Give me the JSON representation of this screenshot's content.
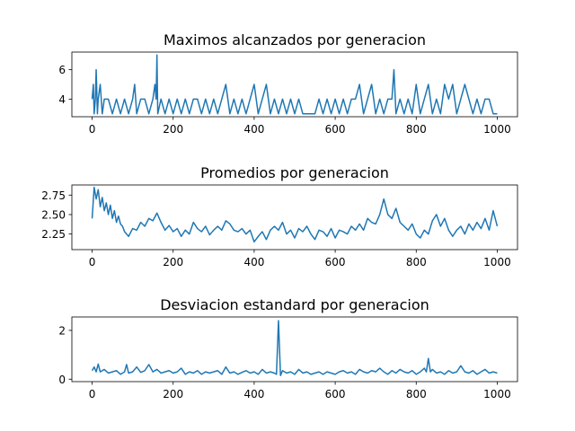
{
  "figure": {
    "background": "#ffffff",
    "line_color": "#1f77b4"
  },
  "chart_data": [
    {
      "type": "line",
      "title": "Maximos alcanzados por generacion",
      "xlabel": "",
      "ylabel": "",
      "xlim": [
        -50,
        1050
      ],
      "ylim": [
        2.8,
        7.2
      ],
      "xticks": [
        0,
        200,
        400,
        600,
        800,
        1000
      ],
      "yticks": [
        4,
        6
      ],
      "grid": false,
      "series": [
        {
          "x": [
            0,
            3,
            5,
            8,
            10,
            13,
            15,
            20,
            25,
            30,
            40,
            50,
            60,
            70,
            80,
            90,
            100,
            105,
            110,
            120,
            130,
            140,
            150,
            155,
            158,
            160,
            162,
            170,
            180,
            190,
            200,
            210,
            220,
            230,
            240,
            250,
            260,
            270,
            280,
            290,
            300,
            310,
            320,
            330,
            335,
            340,
            350,
            360,
            370,
            380,
            390,
            400,
            410,
            420,
            430,
            440,
            450,
            460,
            470,
            480,
            490,
            500,
            510,
            520,
            530,
            540,
            550,
            560,
            570,
            580,
            590,
            600,
            610,
            620,
            630,
            640,
            650,
            660,
            670,
            680,
            690,
            700,
            710,
            720,
            730,
            740,
            745,
            750,
            760,
            770,
            780,
            790,
            800,
            810,
            820,
            830,
            840,
            850,
            860,
            870,
            880,
            890,
            900,
            910,
            920,
            930,
            940,
            950,
            960,
            970,
            980,
            990,
            1000
          ],
          "values": [
            4,
            5,
            3,
            4,
            6,
            3,
            4,
            5,
            3,
            4,
            4,
            3,
            4,
            3,
            4,
            3,
            4,
            5,
            3,
            4,
            4,
            3,
            4,
            5,
            4,
            7,
            3,
            4,
            3,
            4,
            3,
            4,
            3,
            4,
            3,
            4,
            4,
            3,
            4,
            3,
            4,
            3,
            4,
            5,
            4,
            3,
            4,
            3,
            4,
            3,
            4,
            5,
            3,
            4,
            5,
            3,
            4,
            3,
            4,
            3,
            4,
            3,
            4,
            3,
            3,
            3,
            3,
            4,
            3,
            4,
            3,
            4,
            3,
            4,
            3,
            4,
            4,
            5,
            3,
            4,
            5,
            3,
            4,
            3,
            4,
            4,
            6,
            3,
            4,
            3,
            4,
            3,
            5,
            3,
            4,
            5,
            3,
            4,
            3,
            5,
            4,
            5,
            3,
            4,
            5,
            4,
            3,
            4,
            3,
            4,
            4,
            3,
            3
          ]
        }
      ]
    },
    {
      "type": "line",
      "title": "Promedios por generacion",
      "xlabel": "",
      "ylabel": "",
      "xlim": [
        -50,
        1050
      ],
      "ylim": [
        2.05,
        2.88
      ],
      "xticks": [
        0,
        200,
        400,
        600,
        800,
        1000
      ],
      "yticks": [
        2.25,
        2.5,
        2.75
      ],
      "yticklabels": [
        "2.25",
        "2.50",
        "2.75"
      ],
      "grid": false,
      "series": [
        {
          "x": [
            0,
            5,
            10,
            15,
            20,
            25,
            30,
            35,
            40,
            45,
            50,
            55,
            60,
            65,
            70,
            75,
            80,
            90,
            100,
            110,
            120,
            130,
            140,
            150,
            160,
            170,
            180,
            190,
            200,
            210,
            220,
            230,
            240,
            250,
            260,
            270,
            280,
            290,
            300,
            310,
            320,
            330,
            340,
            350,
            360,
            370,
            380,
            390,
            400,
            410,
            420,
            430,
            440,
            450,
            460,
            470,
            480,
            490,
            500,
            510,
            520,
            530,
            540,
            550,
            560,
            570,
            580,
            590,
            600,
            610,
            620,
            630,
            640,
            650,
            660,
            670,
            680,
            690,
            700,
            710,
            720,
            730,
            740,
            750,
            760,
            770,
            780,
            790,
            800,
            810,
            820,
            830,
            840,
            850,
            860,
            870,
            880,
            890,
            900,
            910,
            920,
            930,
            940,
            950,
            960,
            970,
            980,
            990,
            1000
          ],
          "values": [
            2.45,
            2.85,
            2.7,
            2.82,
            2.6,
            2.72,
            2.55,
            2.65,
            2.5,
            2.62,
            2.45,
            2.55,
            2.4,
            2.48,
            2.38,
            2.35,
            2.28,
            2.22,
            2.32,
            2.3,
            2.4,
            2.35,
            2.45,
            2.42,
            2.52,
            2.4,
            2.3,
            2.36,
            2.28,
            2.32,
            2.22,
            2.3,
            2.25,
            2.4,
            2.32,
            2.28,
            2.35,
            2.24,
            2.3,
            2.35,
            2.3,
            2.42,
            2.38,
            2.3,
            2.28,
            2.32,
            2.25,
            2.3,
            2.15,
            2.22,
            2.28,
            2.18,
            2.3,
            2.35,
            2.3,
            2.4,
            2.25,
            2.3,
            2.2,
            2.32,
            2.28,
            2.35,
            2.25,
            2.18,
            2.3,
            2.28,
            2.22,
            2.32,
            2.2,
            2.3,
            2.28,
            2.25,
            2.35,
            2.3,
            2.38,
            2.3,
            2.45,
            2.4,
            2.38,
            2.5,
            2.7,
            2.5,
            2.45,
            2.58,
            2.4,
            2.35,
            2.3,
            2.38,
            2.25,
            2.2,
            2.3,
            2.25,
            2.42,
            2.5,
            2.35,
            2.45,
            2.3,
            2.22,
            2.3,
            2.35,
            2.25,
            2.38,
            2.3,
            2.4,
            2.32,
            2.45,
            2.3,
            2.55,
            2.35
          ]
        }
      ]
    },
    {
      "type": "line",
      "title": "Desviacion estandard por generacion",
      "xlabel": "",
      "ylabel": "",
      "xlim": [
        -50,
        1050
      ],
      "ylim": [
        -0.1,
        2.55
      ],
      "xticks": [
        0,
        200,
        400,
        600,
        800,
        1000
      ],
      "yticks": [
        0,
        2
      ],
      "grid": false,
      "series": [
        {
          "x": [
            0,
            5,
            10,
            15,
            20,
            30,
            40,
            50,
            60,
            70,
            80,
            85,
            90,
            100,
            110,
            120,
            130,
            140,
            150,
            160,
            170,
            180,
            190,
            200,
            210,
            220,
            230,
            240,
            250,
            260,
            270,
            280,
            290,
            300,
            310,
            320,
            330,
            340,
            350,
            360,
            370,
            380,
            390,
            400,
            410,
            420,
            430,
            440,
            450,
            455,
            460,
            465,
            470,
            480,
            490,
            500,
            510,
            520,
            530,
            540,
            550,
            560,
            570,
            580,
            590,
            600,
            610,
            620,
            630,
            640,
            650,
            660,
            670,
            680,
            690,
            700,
            710,
            720,
            730,
            740,
            750,
            760,
            770,
            780,
            790,
            800,
            810,
            820,
            825,
            830,
            835,
            840,
            850,
            860,
            870,
            880,
            890,
            900,
            910,
            920,
            930,
            940,
            950,
            960,
            970,
            980,
            990,
            1000
          ],
          "values": [
            0.35,
            0.5,
            0.3,
            0.62,
            0.3,
            0.4,
            0.25,
            0.3,
            0.35,
            0.2,
            0.3,
            0.6,
            0.25,
            0.3,
            0.5,
            0.28,
            0.35,
            0.6,
            0.3,
            0.4,
            0.25,
            0.3,
            0.35,
            0.25,
            0.3,
            0.45,
            0.2,
            0.3,
            0.25,
            0.35,
            0.2,
            0.3,
            0.25,
            0.3,
            0.35,
            0.2,
            0.5,
            0.25,
            0.3,
            0.2,
            0.28,
            0.35,
            0.25,
            0.3,
            0.2,
            0.4,
            0.25,
            0.3,
            0.25,
            0.2,
            2.4,
            0.15,
            0.35,
            0.25,
            0.3,
            0.2,
            0.4,
            0.25,
            0.3,
            0.2,
            0.25,
            0.3,
            0.2,
            0.3,
            0.25,
            0.2,
            0.3,
            0.35,
            0.25,
            0.3,
            0.2,
            0.4,
            0.3,
            0.25,
            0.35,
            0.3,
            0.45,
            0.3,
            0.2,
            0.35,
            0.25,
            0.4,
            0.3,
            0.25,
            0.35,
            0.2,
            0.3,
            0.45,
            0.3,
            0.85,
            0.3,
            0.4,
            0.25,
            0.3,
            0.2,
            0.35,
            0.25,
            0.3,
            0.55,
            0.3,
            0.25,
            0.35,
            0.2,
            0.3,
            0.4,
            0.25,
            0.3,
            0.25
          ]
        }
      ]
    }
  ]
}
